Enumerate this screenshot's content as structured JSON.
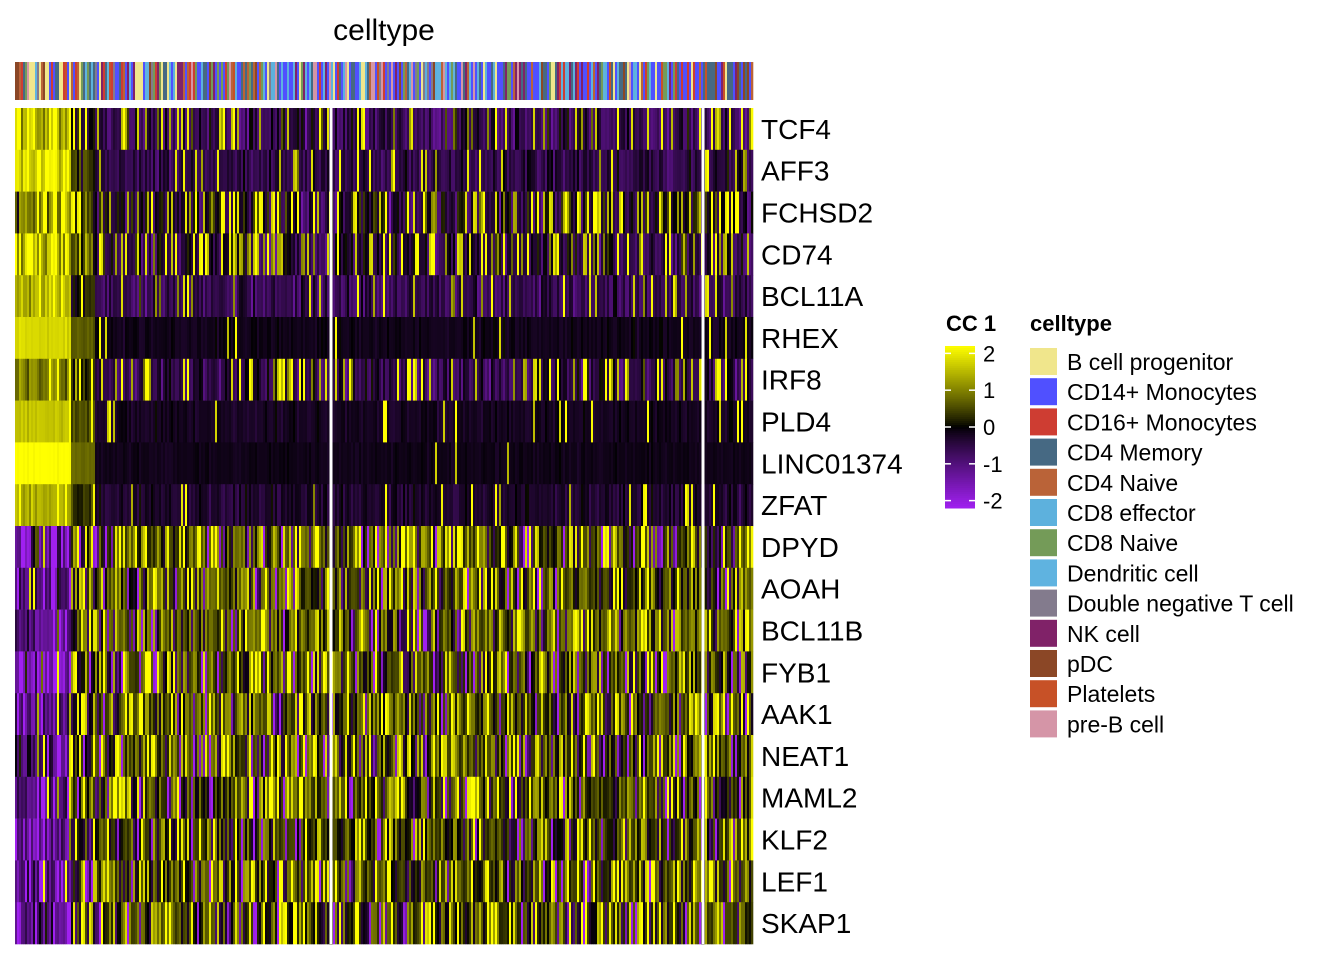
{
  "chart_data": {
    "type": "heatmap",
    "title": "celltype",
    "annotation_title": "celltype",
    "colorbar": {
      "title": "CC 1",
      "ticks": [
        2,
        1,
        0,
        -1,
        -2
      ],
      "tick_labels": [
        "2",
        "1",
        "0",
        "-1",
        "-2"
      ],
      "range": [
        -2.2,
        2.2
      ],
      "colors": [
        "#a020f0",
        "#000000",
        "#ffff00"
      ]
    },
    "rows": [
      "TCF4",
      "AFF3",
      "FCHSD2",
      "CD74",
      "BCL11A",
      "RHEX",
      "IRF8",
      "PLD4",
      "LINC01374",
      "ZFAT",
      "DPYD",
      "AOAH",
      "BCL11B",
      "FYB1",
      "AAK1",
      "NEAT1",
      "MAML2",
      "KLF2",
      "LEF1",
      "SKAP1"
    ],
    "column_groups": [
      {
        "width_fraction": 0.428
      },
      {
        "width_fraction": 0.503
      },
      {
        "width_fraction": 0.069
      }
    ],
    "row_patterns": [
      {
        "base_left": 1.4,
        "base_right": -0.6,
        "noise": 1.3,
        "hit_rate": 0.18
      },
      {
        "base_left": 1.8,
        "base_right": -0.5,
        "noise": 1.0,
        "hit_rate": 0.1
      },
      {
        "base_left": 1.0,
        "base_right": -0.3,
        "noise": 1.8,
        "hit_rate": 0.3
      },
      {
        "base_left": 1.5,
        "base_right": -0.4,
        "noise": 1.7,
        "hit_rate": 0.28
      },
      {
        "base_left": 1.4,
        "base_right": -0.6,
        "noise": 1.1,
        "hit_rate": 0.1
      },
      {
        "base_left": 1.8,
        "base_right": -0.15,
        "noise": 0.3,
        "hit_rate": 0.02
      },
      {
        "base_left": 1.0,
        "base_right": -0.5,
        "noise": 1.4,
        "hit_rate": 0.22
      },
      {
        "base_left": 1.6,
        "base_right": -0.2,
        "noise": 0.4,
        "hit_rate": 0.03
      },
      {
        "base_left": 2.2,
        "base_right": -0.15,
        "noise": 0.2,
        "hit_rate": 0.01
      },
      {
        "base_left": 1.4,
        "base_right": -0.3,
        "noise": 0.7,
        "hit_rate": 0.06
      },
      {
        "base_left": -1.2,
        "base_right": 0.6,
        "noise": 1.7,
        "hit_rate": 0.3
      },
      {
        "base_left": -0.9,
        "base_right": 0.5,
        "noise": 1.6,
        "hit_rate": 0.25
      },
      {
        "base_left": -1.1,
        "base_right": 0.7,
        "noise": 1.5,
        "hit_rate": 0.25
      },
      {
        "base_left": -1.5,
        "base_right": 0.5,
        "noise": 1.7,
        "hit_rate": 0.3
      },
      {
        "base_left": -1.0,
        "base_right": 0.5,
        "noise": 1.6,
        "hit_rate": 0.25
      },
      {
        "base_left": -0.6,
        "base_right": 0.5,
        "noise": 1.7,
        "hit_rate": 0.3
      },
      {
        "base_left": -0.9,
        "base_right": 0.4,
        "noise": 1.6,
        "hit_rate": 0.25
      },
      {
        "base_left": -1.2,
        "base_right": 0.3,
        "noise": 1.6,
        "hit_rate": 0.22
      },
      {
        "base_left": -1.0,
        "base_right": 0.4,
        "noise": 1.5,
        "hit_rate": 0.22
      },
      {
        "base_left": -1.0,
        "base_right": 0.4,
        "noise": 1.6,
        "hit_rate": 0.25
      }
    ],
    "legend": [
      {
        "label": "B cell progenitor",
        "color": "#f0e68c"
      },
      {
        "label": "CD14+ Monocytes",
        "color": "#5050ff"
      },
      {
        "label": "CD16+ Monocytes",
        "color": "#ce3d32"
      },
      {
        "label": "CD4 Memory",
        "color": "#466983"
      },
      {
        "label": "CD4 Naive",
        "color": "#ba6338"
      },
      {
        "label": "CD8 effector",
        "color": "#5db1dd"
      },
      {
        "label": "CD8 Naive",
        "color": "#749b58"
      },
      {
        "label": "Dendritic cell",
        "color": "#5fb3e0"
      },
      {
        "label": "Double negative T cell",
        "color": "#837b8d"
      },
      {
        "label": "NK cell",
        "color": "#802268"
      },
      {
        "label": "pDC",
        "color": "#8b4726"
      },
      {
        "label": "Platelets",
        "color": "#c75127"
      },
      {
        "label": "pre-B cell",
        "color": "#d595a7"
      }
    ],
    "legend_placement": "right",
    "grid": false
  }
}
